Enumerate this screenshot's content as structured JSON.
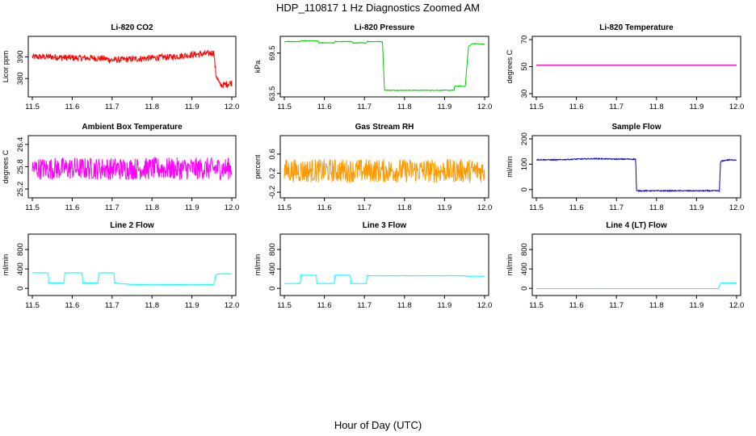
{
  "figure": {
    "title": "HDP_110817  1 Hz Diagnostics Zoomed AM",
    "xlabel": "Hour of Day (UTC)"
  },
  "chart_data": [
    {
      "id": "co2",
      "type": "line",
      "title": "Li-820 CO2",
      "ylabel": "Licor ppm",
      "color": "#ff0000",
      "xlim": [
        11.5,
        12.0
      ],
      "ylim": [
        373,
        398
      ],
      "xticks": [
        11.5,
        11.6,
        11.7,
        11.8,
        11.9,
        12.0
      ],
      "xtick_labels": [
        "11.5",
        "11.6",
        "11.7",
        "11.8",
        "11.9",
        "12.0"
      ],
      "yticks": [
        380,
        390
      ],
      "ytick_labels": [
        "380",
        "390"
      ],
      "series": [
        {
          "name": "Li-820 CO2",
          "x": [
            11.5,
            11.55,
            11.6,
            11.65,
            11.68,
            11.7,
            11.75,
            11.8,
            11.85,
            11.9,
            11.94,
            11.955,
            11.96,
            11.97,
            11.98,
            12.0
          ],
          "y": [
            390,
            390,
            389.5,
            389.5,
            389.2,
            388.5,
            389,
            389.5,
            390,
            391,
            391.5,
            392,
            382,
            377,
            377,
            378
          ],
          "noise": 1.5
        }
      ]
    },
    {
      "id": "pressure",
      "type": "line",
      "title": "Li-820 Pressure",
      "ylabel": "kPa",
      "color": "#00cc00",
      "xlim": [
        11.5,
        12.0
      ],
      "ylim": [
        63.5,
        71.5
      ],
      "xticks": [
        11.5,
        11.6,
        11.7,
        11.8,
        11.9,
        12.0
      ],
      "xtick_labels": [
        "11.5",
        "11.6",
        "11.7",
        "11.8",
        "11.9",
        "12.0"
      ],
      "yticks": [
        63.5,
        69.5
      ],
      "ytick_labels": [
        "63.5",
        "69.5"
      ],
      "series": [
        {
          "name": "Li-820 Pressure",
          "x": [
            11.5,
            11.54,
            11.541,
            11.585,
            11.586,
            11.625,
            11.626,
            11.67,
            11.671,
            11.705,
            11.706,
            11.745,
            11.75,
            11.8,
            11.85,
            11.9,
            11.924,
            11.925,
            11.952,
            11.955,
            11.96,
            11.97,
            11.98,
            12.0
          ],
          "y": [
            71.2,
            71.2,
            71.3,
            71.3,
            71.0,
            71.0,
            71.2,
            71.2,
            71.0,
            71.0,
            71.2,
            71.2,
            64.0,
            64.0,
            64.0,
            64.0,
            64.0,
            64.6,
            64.6,
            67.0,
            70.5,
            70.9,
            70.9,
            70.8
          ],
          "noise": 0.05
        }
      ]
    },
    {
      "id": "temperature",
      "type": "line",
      "title": "Li-820 Temperature",
      "ylabel": "degrees C",
      "color": "#ff00cc",
      "xlim": [
        11.5,
        12.0
      ],
      "ylim": [
        30,
        70
      ],
      "xticks": [
        11.5,
        11.6,
        11.7,
        11.8,
        11.9,
        12.0
      ],
      "xtick_labels": [
        "11.5",
        "11.6",
        "11.7",
        "11.8",
        "11.9",
        "12.0"
      ],
      "yticks": [
        30,
        50,
        70
      ],
      "ytick_labels": [
        "30",
        "50",
        "70"
      ],
      "series": [
        {
          "name": "Li-820 Temperature",
          "x": [
            11.5,
            12.0
          ],
          "y": [
            51,
            51
          ],
          "noise": 0
        }
      ]
    },
    {
      "id": "ambient",
      "type": "line",
      "title": "Ambient Box Temperature",
      "ylabel": "degrees C",
      "color": "#ff00ff",
      "xlim": [
        11.5,
        12.0
      ],
      "ylim": [
        25.05,
        26.55
      ],
      "xticks": [
        11.5,
        11.6,
        11.7,
        11.8,
        11.9,
        12.0
      ],
      "xtick_labels": [
        "11.5",
        "11.6",
        "11.7",
        "11.8",
        "11.9",
        "12.0"
      ],
      "yticks": [
        25.2,
        25.8,
        26.4
      ],
      "ytick_labels": [
        "25.2",
        "25.8",
        "26.4"
      ],
      "series": [
        {
          "name": "Ambient Box Temperature",
          "x": [
            11.5,
            11.75,
            12.0
          ],
          "y": [
            25.75,
            25.75,
            25.75
          ],
          "noise": 0.3
        }
      ]
    },
    {
      "id": "rh",
      "type": "line",
      "title": "Gas Stream RH",
      "ylabel": "percent",
      "color": "#ff9900",
      "xlim": [
        11.5,
        12.0
      ],
      "ylim": [
        -0.25,
        0.92
      ],
      "xticks": [
        11.5,
        11.6,
        11.7,
        11.8,
        11.9,
        12.0
      ],
      "xtick_labels": [
        "11.5",
        "11.6",
        "11.7",
        "11.8",
        "11.9",
        "12.0"
      ],
      "yticks": [
        -0.2,
        0.2,
        0.6
      ],
      "ytick_labels": [
        "-0.2",
        "0.2",
        "0.6"
      ],
      "series": [
        {
          "name": "Gas Stream RH",
          "x": [
            11.5,
            11.75,
            12.0
          ],
          "y": [
            0.25,
            0.25,
            0.25
          ],
          "noise": 0.25
        }
      ]
    },
    {
      "id": "sample",
      "type": "line",
      "title": "Sample Flow",
      "ylabel": "ml/min",
      "color": "#0000cc",
      "xlim": [
        11.5,
        12.0
      ],
      "ylim": [
        -20,
        200
      ],
      "xticks": [
        11.5,
        11.6,
        11.7,
        11.8,
        11.9,
        12.0
      ],
      "xtick_labels": [
        "11.5",
        "11.6",
        "11.7",
        "11.8",
        "11.9",
        "12.0"
      ],
      "yticks": [
        0,
        100,
        200
      ],
      "ytick_labels": [
        "0",
        "100",
        "200"
      ],
      "series": [
        {
          "name": "Sample Flow",
          "x": [
            11.5,
            11.55,
            11.6,
            11.65,
            11.7,
            11.748,
            11.75,
            11.8,
            11.85,
            11.9,
            11.957,
            11.96,
            11.97,
            11.98,
            12.0
          ],
          "y": [
            118,
            117,
            120,
            122,
            120,
            120,
            -5,
            -5,
            -5,
            -5,
            -5,
            110,
            115,
            117,
            117
          ],
          "noise": 2
        }
      ]
    },
    {
      "id": "line2",
      "type": "line",
      "title": "Line 2 Flow",
      "ylabel": "ml/min",
      "color": "#00ffff",
      "xlim": [
        11.5,
        12.0
      ],
      "ylim": [
        -80,
        1050
      ],
      "xticks": [
        11.5,
        11.6,
        11.7,
        11.8,
        11.9,
        12.0
      ],
      "xtick_labels": [
        "11.5",
        "11.6",
        "11.7",
        "11.8",
        "11.9",
        "12.0"
      ],
      "yticks": [
        0,
        400,
        800
      ],
      "ytick_labels": [
        "0",
        "400",
        "800"
      ],
      "series": [
        {
          "name": "Line 2 Flow",
          "x": [
            11.5,
            11.54,
            11.541,
            11.58,
            11.581,
            11.625,
            11.626,
            11.665,
            11.666,
            11.705,
            11.706,
            11.75,
            11.8,
            11.9,
            11.955,
            11.96,
            11.97,
            11.98,
            12.0
          ],
          "y": [
            320,
            320,
            110,
            110,
            320,
            320,
            110,
            110,
            320,
            320,
            110,
            80,
            80,
            80,
            80,
            280,
            300,
            300,
            300
          ],
          "noise": 4
        }
      ]
    },
    {
      "id": "line3",
      "type": "line",
      "title": "Line 3 Flow",
      "ylabel": "ml/min",
      "color": "#00ffff",
      "xlim": [
        11.5,
        12.0
      ],
      "ylim": [
        -80,
        1050
      ],
      "xticks": [
        11.5,
        11.6,
        11.7,
        11.8,
        11.9,
        12.0
      ],
      "xtick_labels": [
        "11.5",
        "11.6",
        "11.7",
        "11.8",
        "11.9",
        "12.0"
      ],
      "yticks": [
        0,
        400,
        800
      ],
      "ytick_labels": [
        "0",
        "400",
        "800"
      ],
      "series": [
        {
          "name": "Line 3 Flow",
          "x": [
            11.5,
            11.54,
            11.541,
            11.58,
            11.581,
            11.625,
            11.626,
            11.665,
            11.666,
            11.705,
            11.706,
            11.75,
            11.8,
            11.85,
            11.9,
            11.95,
            11.96,
            11.97,
            11.98,
            12.0
          ],
          "y": [
            100,
            100,
            270,
            270,
            100,
            100,
            270,
            270,
            100,
            100,
            260,
            260,
            260,
            260,
            260,
            260,
            245,
            250,
            250,
            250
          ],
          "noise": 4
        }
      ]
    },
    {
      "id": "line4",
      "type": "line",
      "title": "Line 4 (LT) Flow",
      "ylabel": "ml/min",
      "color": "#00ffff",
      "xlim": [
        11.5,
        12.0
      ],
      "ylim": [
        -80,
        1050
      ],
      "xticks": [
        11.5,
        11.6,
        11.7,
        11.8,
        11.9,
        12.0
      ],
      "xtick_labels": [
        "11.5",
        "11.6",
        "11.7",
        "11.8",
        "11.9",
        "12.0"
      ],
      "yticks": [
        0,
        400,
        800
      ],
      "ytick_labels": [
        "0",
        "400",
        "800"
      ],
      "series": [
        {
          "name": "Line 4 (LT) Flow",
          "x": [
            11.5,
            11.9,
            11.955,
            11.96,
            11.97,
            12.0
          ],
          "y": [
            -5,
            -5,
            -5,
            110,
            110,
            110
          ],
          "noise": 1
        }
      ]
    }
  ]
}
